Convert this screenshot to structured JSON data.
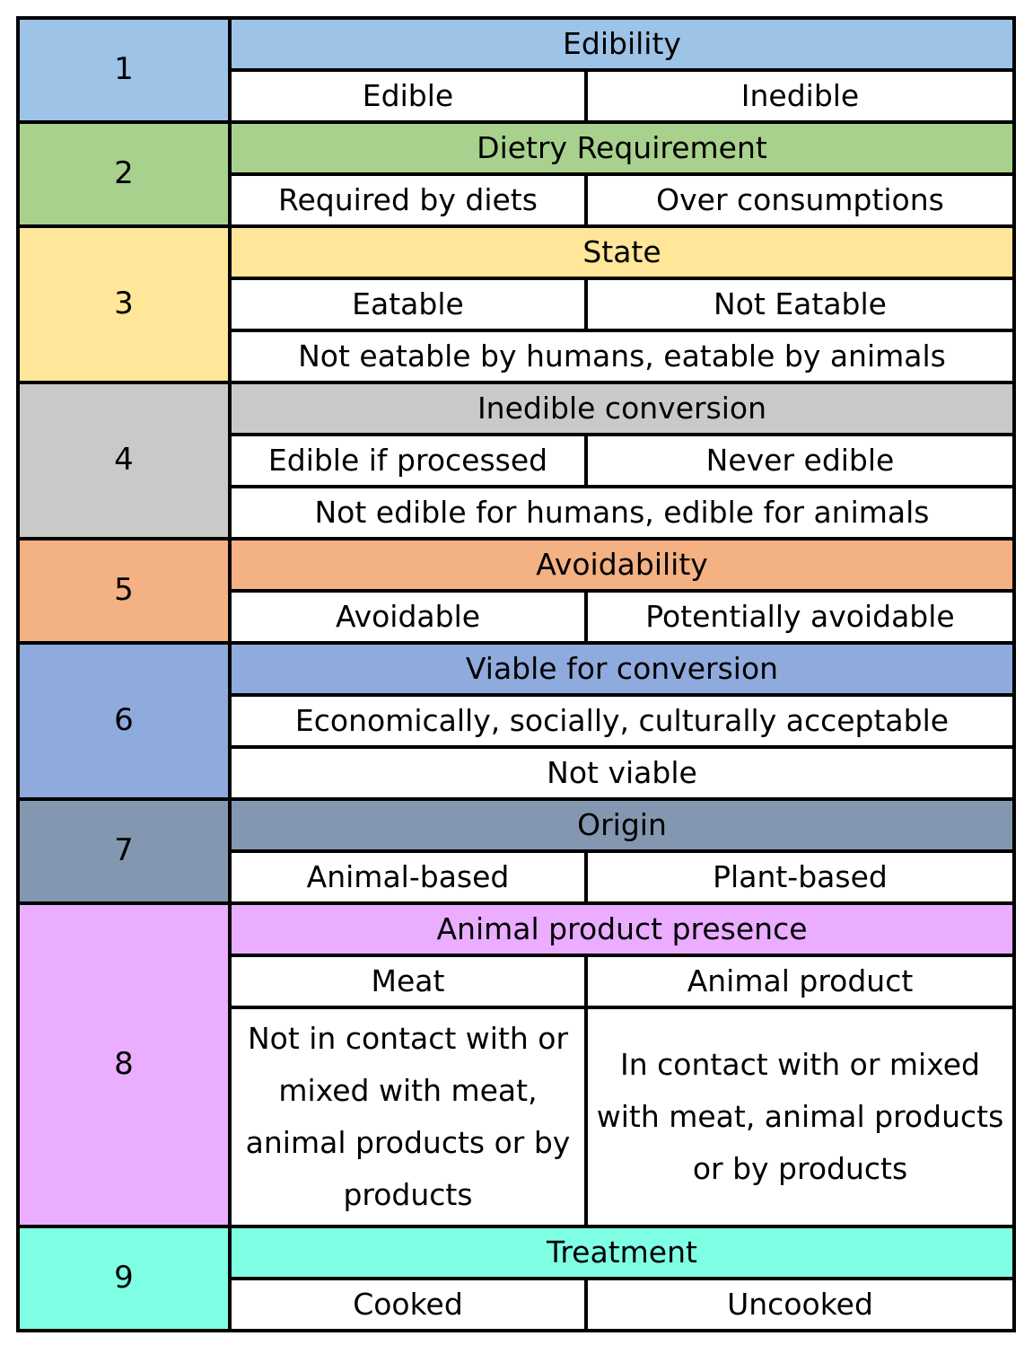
{
  "sections": [
    {
      "number": "1",
      "color": "#9dc3e6",
      "header": "Edibility",
      "rows": [
        [
          "Edible",
          "Inedible"
        ]
      ]
    },
    {
      "number": "2",
      "color": "#a9d18e",
      "header": "Dietry Requirement",
      "rows": [
        [
          "Required by diets",
          "Over consumptions"
        ]
      ]
    },
    {
      "number": "3",
      "color": "#ffe699",
      "header": "State",
      "rows": [
        [
          "Eatable",
          "Not Eatable"
        ],
        [
          "Not eatable by humans, eatable by animals"
        ]
      ]
    },
    {
      "number": "4",
      "color": "#c9c9c9",
      "header": "Inedible conversion",
      "rows": [
        [
          "Edible if processed",
          "Never edible"
        ],
        [
          "Not edible for humans, edible for animals"
        ]
      ]
    },
    {
      "number": "5",
      "color": "#f4b183",
      "header": "Avoidability",
      "rows": [
        [
          "Avoidable",
          "Potentially avoidable"
        ]
      ]
    },
    {
      "number": "6",
      "color": "#8faadc",
      "header": "Viable for  conversion",
      "rows": [
        [
          "Economically, socially, culturally acceptable"
        ],
        [
          "Not viable"
        ]
      ]
    },
    {
      "number": "7",
      "color": "#8497b0",
      "header": "Origin",
      "rows": [
        [
          "Animal-based",
          "Plant-based"
        ]
      ]
    },
    {
      "number": "8",
      "color": "#eaadff",
      "header": "Animal product presence",
      "rows": [
        [
          "Meat",
          "Animal product"
        ],
        [
          "Not in contact with or mixed with meat, animal products or by products",
          "In contact with or mixed with meat, animal products or by products"
        ]
      ]
    },
    {
      "number": "9",
      "color": "#7fffe4",
      "header": "Treatment",
      "rows": [
        [
          "Cooked",
          "Uncooked"
        ]
      ]
    }
  ]
}
